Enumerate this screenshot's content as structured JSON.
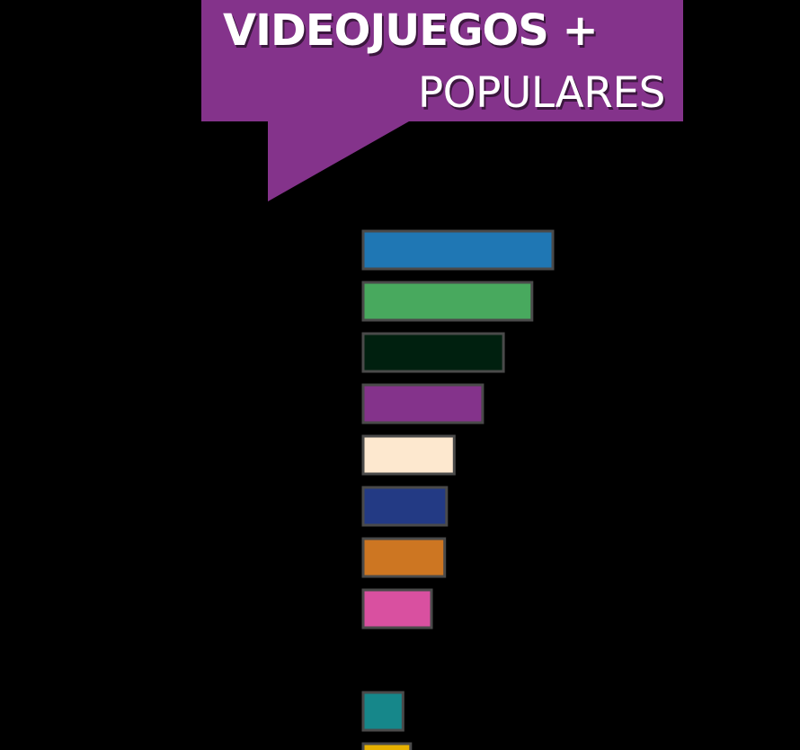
{
  "title": {
    "line1": "VIDEOJUEGOS +",
    "line2": "POPULARES"
  },
  "colors": {
    "banner": "#84338b",
    "background": "#000000",
    "bar_border": "#4a4a4a"
  },
  "chart_data": {
    "type": "bar",
    "orientation": "horizontal",
    "title": "VIDEOJUEGOS + POPULARES",
    "xlabel": "",
    "ylabel": "",
    "grid": false,
    "legend": "none",
    "xlim": [
      0,
      10
    ],
    "bars": [
      {
        "value": 10.0,
        "color": "#1f77b4"
      },
      {
        "value": 8.9,
        "color": "#48a95e"
      },
      {
        "value": 7.4,
        "color": "#00200f"
      },
      {
        "value": 6.3,
        "color": "#84338b"
      },
      {
        "value": 4.8,
        "color": "#fde8cf"
      },
      {
        "value": 4.4,
        "color": "#233a84"
      },
      {
        "value": 4.3,
        "color": "#cd7622"
      },
      {
        "value": 3.6,
        "color": "#d950a0"
      },
      {
        "value": 0,
        "color": ""
      },
      {
        "value": 2.1,
        "color": "#16878a"
      },
      {
        "value": 2.5,
        "color": "#e8b100"
      }
    ]
  }
}
